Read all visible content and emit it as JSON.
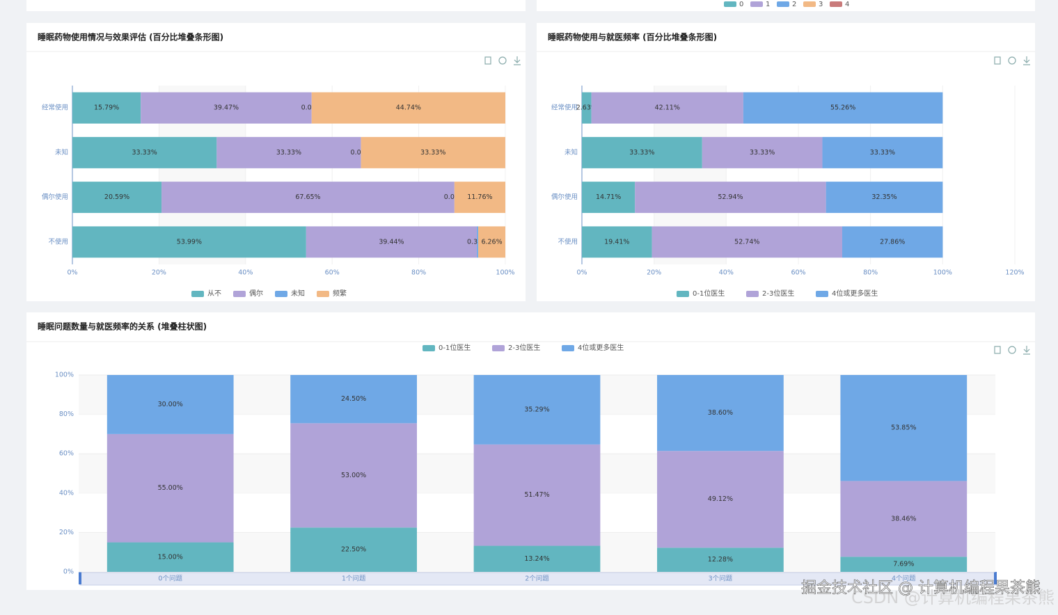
{
  "top_legend": [
    {
      "name": "0",
      "color": "#62b6c0"
    },
    {
      "name": "1",
      "color": "#b0a3d8"
    },
    {
      "name": "2",
      "color": "#6fa8e6"
    },
    {
      "name": "3",
      "color": "#f2b985"
    },
    {
      "name": "4",
      "color": "#c97a7a"
    }
  ],
  "chart_data": [
    {
      "type": "hbar-stacked",
      "title": "睡眠药物使用情况与效果评估 (百分比堆叠条形图)",
      "categories": [
        "经常使用",
        "未知",
        "偶尔使用",
        "不使用"
      ],
      "series": [
        {
          "name": "从不",
          "color": "#62b6c0",
          "values": [
            15.79,
            33.33,
            20.59,
            53.99
          ],
          "value_labels": [
            "15.79%",
            "33.33%",
            "20.59%",
            "53.99%"
          ]
        },
        {
          "name": "偶尔",
          "color": "#b0a3d8",
          "values": [
            39.47,
            33.33,
            67.65,
            39.44
          ],
          "value_labels": [
            "39.47%",
            "33.33%",
            "67.65%",
            "39.44%"
          ]
        },
        {
          "name": "未知",
          "color": "#6fa8e6",
          "values": [
            0.0,
            0.0,
            0.0,
            0.31
          ],
          "value_labels": [
            "0.00%",
            "0.00%",
            "0.00%",
            "0.31%"
          ]
        },
        {
          "name": "频繁",
          "color": "#f2b985",
          "values": [
            44.74,
            33.33,
            11.76,
            6.26
          ],
          "value_labels": [
            "44.74%",
            "33.33%",
            "11.76%",
            "6.26%"
          ]
        }
      ],
      "xlim": [
        0,
        100
      ],
      "xticks": [
        {
          "value": 0,
          "label": "0%"
        },
        {
          "value": 20,
          "label": "20%"
        },
        {
          "value": 40,
          "label": "40%"
        },
        {
          "value": 60,
          "label": "60%"
        },
        {
          "value": 80,
          "label": "80%"
        },
        {
          "value": 100,
          "label": "100%"
        }
      ],
      "grid": true
    },
    {
      "type": "hbar-stacked",
      "title": "睡眠药物使用与就医频率 (百分比堆叠条形图)",
      "categories": [
        "经常使用",
        "未知",
        "偶尔使用",
        "不使用"
      ],
      "series": [
        {
          "name": "0-1位医生",
          "color": "#62b6c0",
          "values": [
            2.63,
            33.33,
            14.71,
            19.41
          ],
          "value_labels": [
            "2.63%",
            "33.33%",
            "14.71%",
            "19.41%"
          ]
        },
        {
          "name": "2-3位医生",
          "color": "#b0a3d8",
          "values": [
            42.11,
            33.33,
            52.94,
            52.74
          ],
          "value_labels": [
            "42.11%",
            "33.33%",
            "52.94%",
            "52.74%"
          ]
        },
        {
          "name": "4位或更多医生",
          "color": "#6fa8e6",
          "values": [
            55.26,
            33.33,
            32.35,
            27.86
          ],
          "value_labels": [
            "55.26%",
            "33.33%",
            "32.35%",
            "27.86%"
          ]
        }
      ],
      "xlim": [
        0,
        120
      ],
      "xticks": [
        {
          "value": 0,
          "label": "0%"
        },
        {
          "value": 20,
          "label": "20%"
        },
        {
          "value": 40,
          "label": "40%"
        },
        {
          "value": 60,
          "label": "60%"
        },
        {
          "value": 80,
          "label": "80%"
        },
        {
          "value": 100,
          "label": "100%"
        },
        {
          "value": 120,
          "label": "120%"
        }
      ],
      "grid": true
    },
    {
      "type": "bar-stacked",
      "title": "睡眠问题数量与就医频率的关系 (堆叠柱状图)",
      "categories": [
        "0个问题",
        "1个问题",
        "2个问题",
        "3个问题",
        "4个问题"
      ],
      "series": [
        {
          "name": "0-1位医生",
          "color": "#62b6c0",
          "values": [
            15.0,
            22.5,
            13.24,
            12.28,
            7.69
          ],
          "value_labels": [
            "15.00%",
            "22.50%",
            "13.24%",
            "12.28%",
            "7.69%"
          ]
        },
        {
          "name": "2-3位医生",
          "color": "#b0a3d8",
          "values": [
            55.0,
            53.0,
            51.47,
            49.12,
            38.46
          ],
          "value_labels": [
            "55.00%",
            "53.00%",
            "51.47%",
            "49.12%",
            "38.46%"
          ]
        },
        {
          "name": "4位或更多医生",
          "color": "#6fa8e6",
          "values": [
            30.0,
            24.5,
            35.29,
            38.6,
            53.85
          ],
          "value_labels": [
            "30.00%",
            "24.50%",
            "35.29%",
            "38.60%",
            "53.85%"
          ]
        }
      ],
      "ylim": [
        0,
        100
      ],
      "yticks": [
        {
          "value": 0,
          "label": "0%"
        },
        {
          "value": 20,
          "label": "20%"
        },
        {
          "value": 40,
          "label": "40%"
        },
        {
          "value": 60,
          "label": "60%"
        },
        {
          "value": 80,
          "label": "80%"
        },
        {
          "value": 100,
          "label": "100%"
        }
      ],
      "grid": true
    }
  ],
  "watermark": [
    "掘金技术社区 @ 计算机编程果茶熊",
    "CSDN @计算机编程果茶熊"
  ]
}
